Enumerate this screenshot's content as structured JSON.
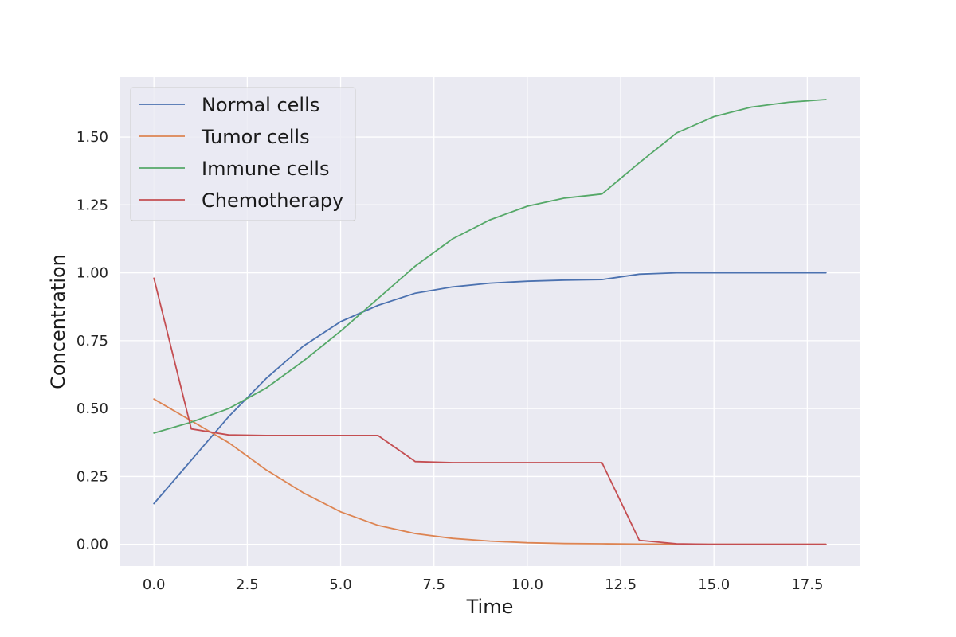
{
  "chart_data": {
    "type": "line",
    "title": "",
    "xlabel": "Time",
    "ylabel": "Concentration",
    "xlim": [
      -0.9,
      18.9
    ],
    "ylim": [
      -0.08,
      1.72
    ],
    "xticks": [
      0.0,
      2.5,
      5.0,
      7.5,
      10.0,
      12.5,
      15.0,
      17.5
    ],
    "xtick_labels": [
      "0.0",
      "2.5",
      "5.0",
      "7.5",
      "10.0",
      "12.5",
      "15.0",
      "17.5"
    ],
    "yticks": [
      0.0,
      0.25,
      0.5,
      0.75,
      1.0,
      1.25,
      1.5
    ],
    "ytick_labels": [
      "0.00",
      "0.25",
      "0.50",
      "0.75",
      "1.00",
      "1.25",
      "1.50"
    ],
    "grid": true,
    "legend_placement": "upper-left",
    "x": [
      0,
      1,
      2,
      3,
      4,
      5,
      6,
      7,
      8,
      9,
      10,
      11,
      12,
      13,
      14,
      15,
      16,
      17,
      18
    ],
    "series": [
      {
        "name": "Normal cells",
        "color": "#4c72b0",
        "values": [
          0.15,
          0.31,
          0.47,
          0.61,
          0.73,
          0.82,
          0.88,
          0.925,
          0.948,
          0.962,
          0.969,
          0.973,
          0.975,
          0.995,
          1.0,
          1.0,
          1.0,
          1.0,
          1.0
        ]
      },
      {
        "name": "Tumor cells",
        "color": "#dd8452",
        "values": [
          0.535,
          0.455,
          0.375,
          0.275,
          0.19,
          0.12,
          0.07,
          0.04,
          0.022,
          0.012,
          0.006,
          0.003,
          0.002,
          0.001,
          0.001,
          0.0,
          0.0,
          0.0,
          0.0
        ]
      },
      {
        "name": "Immune cells",
        "color": "#55a868",
        "values": [
          0.41,
          0.45,
          0.5,
          0.575,
          0.675,
          0.785,
          0.905,
          1.025,
          1.125,
          1.195,
          1.245,
          1.275,
          1.29,
          1.405,
          1.515,
          1.575,
          1.61,
          1.628,
          1.638
        ]
      },
      {
        "name": "Chemotherapy",
        "color": "#c44e52",
        "values": [
          0.98,
          0.425,
          0.403,
          0.401,
          0.401,
          0.401,
          0.401,
          0.305,
          0.301,
          0.301,
          0.301,
          0.301,
          0.301,
          0.015,
          0.002,
          0.0,
          0.0,
          0.0,
          0.0
        ]
      }
    ]
  }
}
